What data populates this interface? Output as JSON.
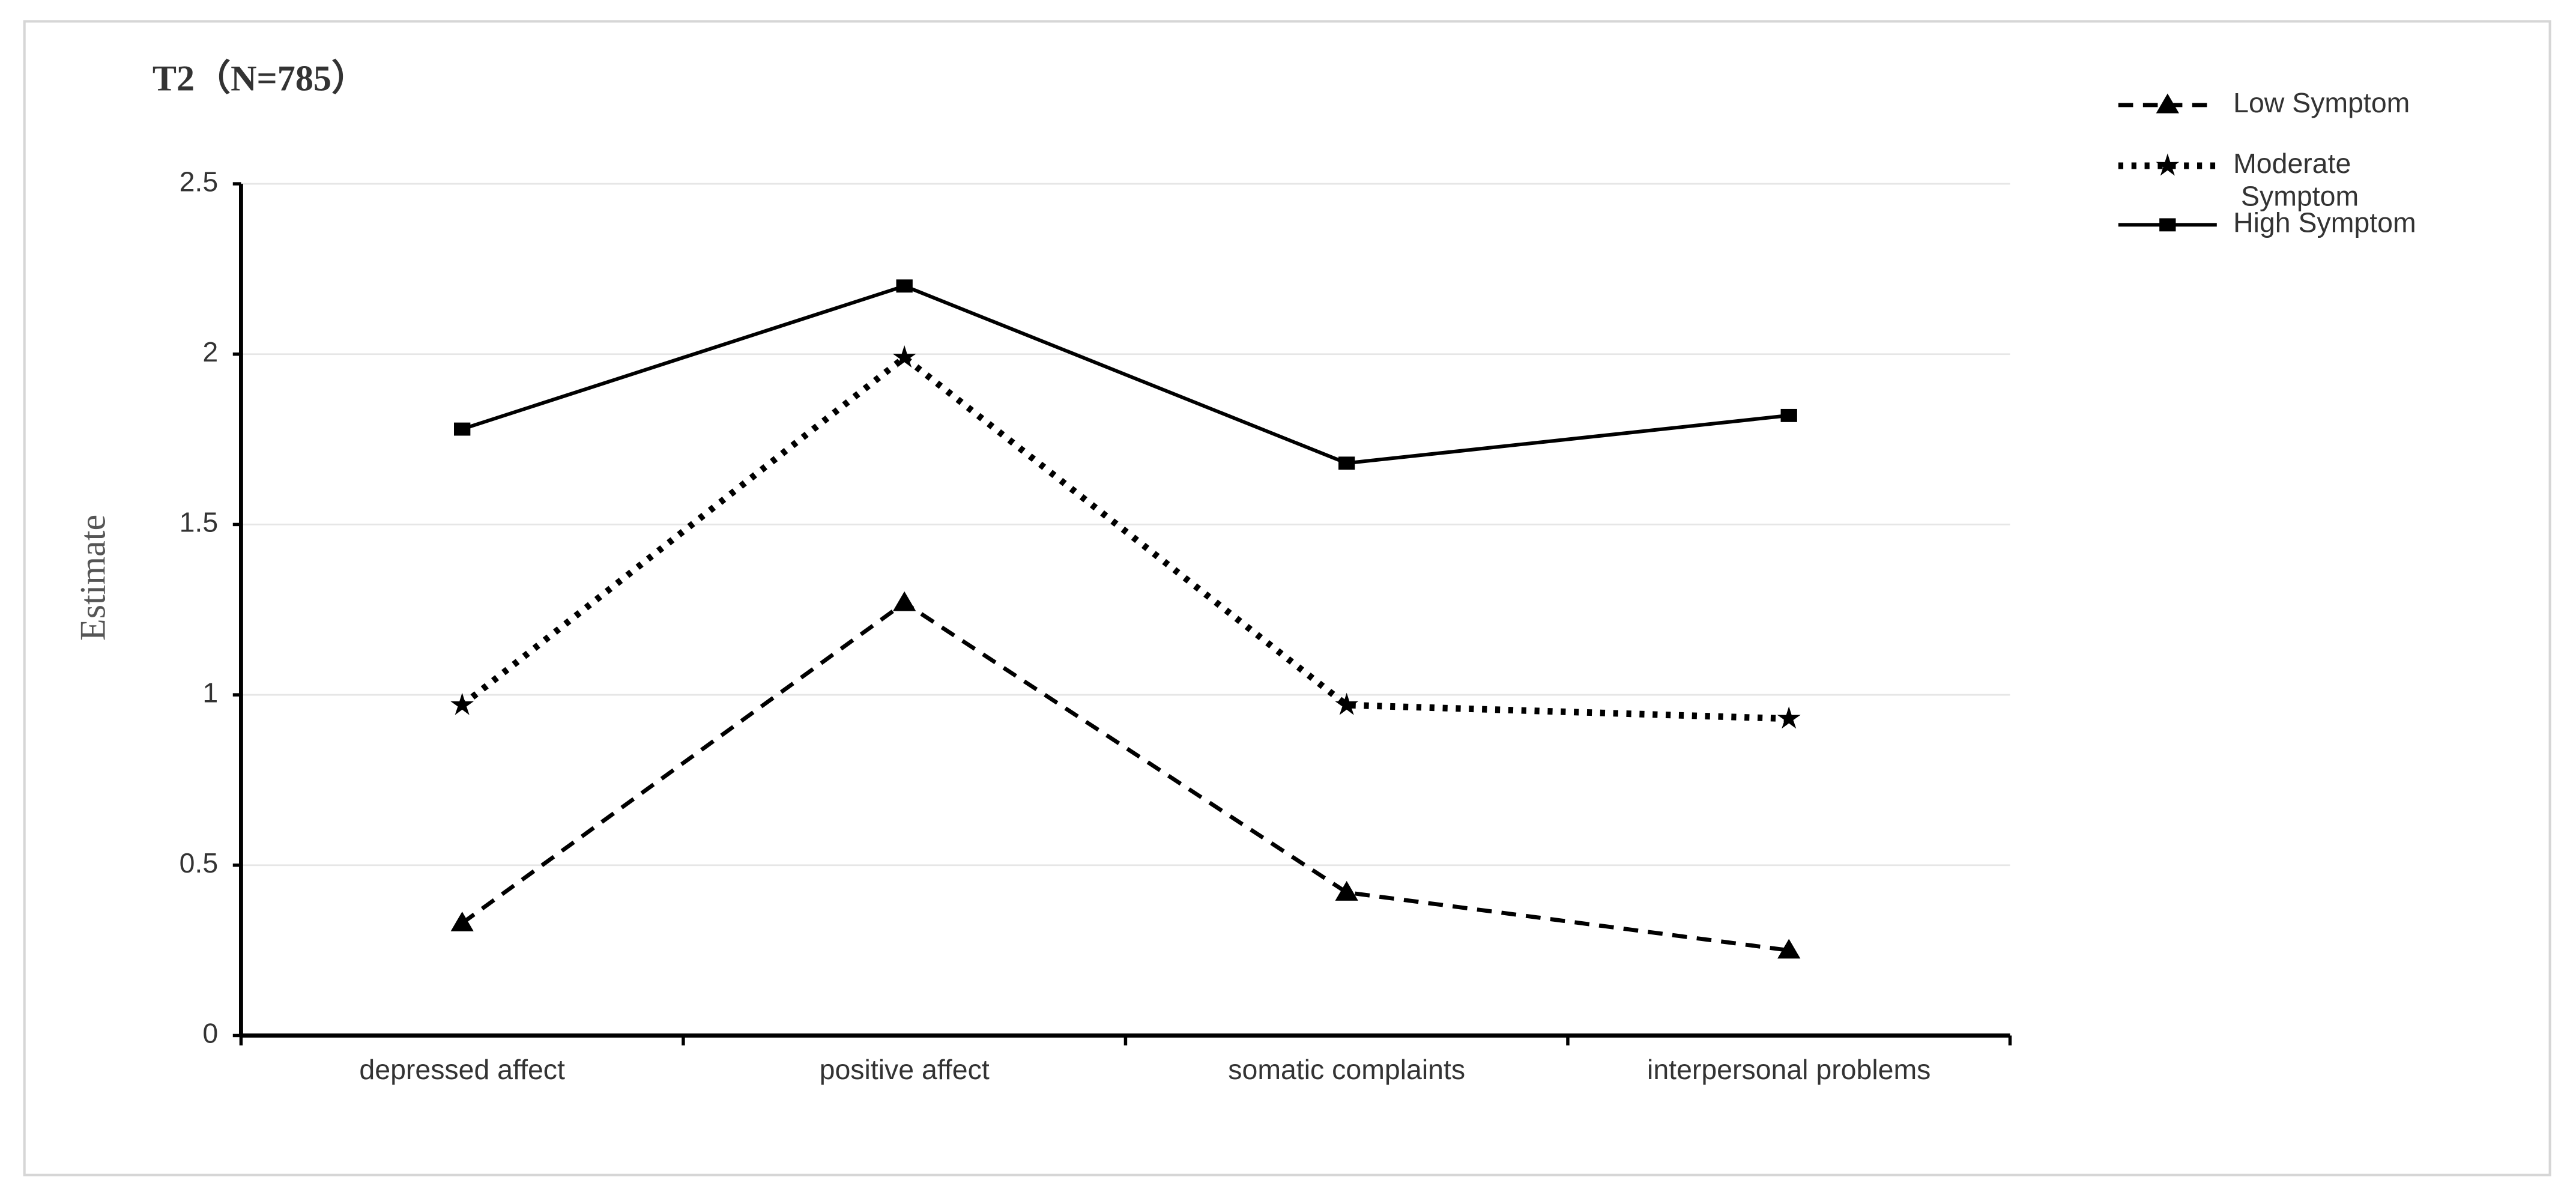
{
  "chart_data": {
    "type": "line",
    "title": "T2（N=785）",
    "y_label": "Estimate",
    "categories": [
      "depressed affect",
      "positive affect",
      "somatic complaints",
      "interpersonal problems"
    ],
    "series": [
      {
        "name": "Low Symptom",
        "color": "#000000",
        "dash": "dashed",
        "marker": "triangle",
        "values": [
          0.33,
          1.27,
          0.42,
          0.25
        ]
      },
      {
        "name": "Moderate Symptom",
        "color": "#000000",
        "dash": "dotted",
        "marker": "star",
        "values": [
          0.97,
          1.99,
          0.97,
          0.93
        ]
      },
      {
        "name": "High Symptom",
        "color": "#000000",
        "dash": "solid",
        "marker": "square",
        "values": [
          1.78,
          2.2,
          1.68,
          1.82
        ]
      }
    ],
    "ylim": [
      0,
      2.5
    ],
    "yticks": [
      0,
      0.5,
      1,
      1.5,
      2,
      2.5
    ],
    "grid": true,
    "legend": "top-right"
  }
}
